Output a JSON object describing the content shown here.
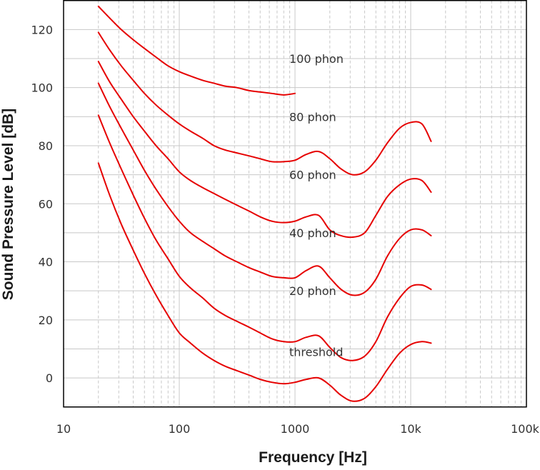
{
  "chart_data": {
    "type": "line",
    "title": "",
    "xlabel": "Frequency [Hz]",
    "ylabel": "Sound Pressure Level [dB]",
    "xscale": "log",
    "xlim": [
      10,
      100000
    ],
    "ylim": [
      -10,
      130
    ],
    "grid": true,
    "line_color": "#e60000",
    "x_ticks": [
      {
        "value": 10,
        "label": "10"
      },
      {
        "value": 100,
        "label": "100"
      },
      {
        "value": 1000,
        "label": "1000"
      },
      {
        "value": 10000,
        "label": "10k"
      },
      {
        "value": 100000,
        "label": "100k"
      }
    ],
    "y_ticks": [
      {
        "value": 0,
        "label": "0"
      },
      {
        "value": 20,
        "label": "20"
      },
      {
        "value": 40,
        "label": "40"
      },
      {
        "value": 60,
        "label": "60"
      },
      {
        "value": 80,
        "label": "80"
      },
      {
        "value": 100,
        "label": "100"
      },
      {
        "value": 120,
        "label": "120"
      }
    ],
    "series": [
      {
        "name": "threshold",
        "label": {
          "text": "threshold",
          "x": 1000,
          "y": 9
        },
        "points": [
          [
            20,
            74
          ],
          [
            25,
            63
          ],
          [
            31.5,
            53
          ],
          [
            40,
            44
          ],
          [
            50,
            36
          ],
          [
            63,
            28.5
          ],
          [
            80,
            21.5
          ],
          [
            100,
            15.5
          ],
          [
            125,
            12
          ],
          [
            160,
            8.5
          ],
          [
            200,
            6
          ],
          [
            250,
            4
          ],
          [
            315,
            2.5
          ],
          [
            400,
            1
          ],
          [
            500,
            -0.5
          ],
          [
            630,
            -1.5
          ],
          [
            800,
            -2
          ],
          [
            1000,
            -1.5
          ],
          [
            1250,
            -0.5
          ],
          [
            1600,
            0
          ],
          [
            2000,
            -2.5
          ],
          [
            2500,
            -6
          ],
          [
            3150,
            -8
          ],
          [
            4000,
            -7
          ],
          [
            5000,
            -3
          ],
          [
            6300,
            3
          ],
          [
            8000,
            8.5
          ],
          [
            10000,
            11.5
          ],
          [
            12500,
            12.5
          ],
          [
            15000,
            12
          ]
        ]
      },
      {
        "name": "20 phon",
        "label": {
          "text": "20 phon",
          "x": 1000,
          "y": 30
        },
        "points": [
          [
            20,
            90.5
          ],
          [
            25,
            81
          ],
          [
            31.5,
            72
          ],
          [
            40,
            63
          ],
          [
            50,
            55
          ],
          [
            63,
            47.5
          ],
          [
            80,
            41
          ],
          [
            100,
            35
          ],
          [
            125,
            31
          ],
          [
            160,
            27.5
          ],
          [
            200,
            24
          ],
          [
            250,
            21.5
          ],
          [
            315,
            19.5
          ],
          [
            400,
            17.5
          ],
          [
            500,
            15.5
          ],
          [
            630,
            13.5
          ],
          [
            800,
            12.5
          ],
          [
            1000,
            12.5
          ],
          [
            1250,
            14
          ],
          [
            1600,
            14.5
          ],
          [
            2000,
            10.5
          ],
          [
            2500,
            7
          ],
          [
            3150,
            6
          ],
          [
            4000,
            7.5
          ],
          [
            5000,
            12.5
          ],
          [
            6300,
            21
          ],
          [
            8000,
            27.5
          ],
          [
            10000,
            31.5
          ],
          [
            12500,
            32
          ],
          [
            15000,
            30.5
          ]
        ]
      },
      {
        "name": "40 phon",
        "label": {
          "text": "40 phon",
          "x": 1000,
          "y": 50
        },
        "points": [
          [
            20,
            101.5
          ],
          [
            25,
            93.5
          ],
          [
            31.5,
            86
          ],
          [
            40,
            78.5
          ],
          [
            50,
            71.5
          ],
          [
            63,
            65
          ],
          [
            80,
            59
          ],
          [
            100,
            54
          ],
          [
            125,
            50
          ],
          [
            160,
            47
          ],
          [
            200,
            44.5
          ],
          [
            250,
            42
          ],
          [
            315,
            40
          ],
          [
            400,
            38
          ],
          [
            500,
            36.5
          ],
          [
            630,
            35
          ],
          [
            800,
            34.5
          ],
          [
            1000,
            34.5
          ],
          [
            1250,
            37
          ],
          [
            1600,
            38.5
          ],
          [
            2000,
            34.5
          ],
          [
            2500,
            30.5
          ],
          [
            3150,
            28.5
          ],
          [
            4000,
            29.5
          ],
          [
            5000,
            34
          ],
          [
            6300,
            42
          ],
          [
            8000,
            48
          ],
          [
            10000,
            51
          ],
          [
            12500,
            51
          ],
          [
            15000,
            49
          ]
        ]
      },
      {
        "name": "60 phon",
        "label": {
          "text": "60 phon",
          "x": 1000,
          "y": 70
        },
        "points": [
          [
            20,
            109
          ],
          [
            25,
            102
          ],
          [
            31.5,
            96
          ],
          [
            40,
            90
          ],
          [
            50,
            85
          ],
          [
            63,
            80
          ],
          [
            80,
            75.5
          ],
          [
            100,
            71
          ],
          [
            125,
            68
          ],
          [
            160,
            65.5
          ],
          [
            200,
            63.5
          ],
          [
            250,
            61.5
          ],
          [
            315,
            59.5
          ],
          [
            400,
            57.5
          ],
          [
            500,
            55.5
          ],
          [
            630,
            54
          ],
          [
            800,
            53.5
          ],
          [
            1000,
            54
          ],
          [
            1250,
            55.5
          ],
          [
            1600,
            56
          ],
          [
            2000,
            51
          ],
          [
            2500,
            49
          ],
          [
            3150,
            48.5
          ],
          [
            4000,
            50
          ],
          [
            5000,
            56
          ],
          [
            6300,
            62.5
          ],
          [
            8000,
            66.5
          ],
          [
            10000,
            68.5
          ],
          [
            12500,
            68
          ],
          [
            15000,
            64
          ]
        ]
      },
      {
        "name": "80 phon",
        "label": {
          "text": "80 phon",
          "x": 1000,
          "y": 90
        },
        "points": [
          [
            20,
            119
          ],
          [
            25,
            113
          ],
          [
            31.5,
            107.5
          ],
          [
            40,
            102.5
          ],
          [
            50,
            98
          ],
          [
            63,
            94
          ],
          [
            80,
            90.5
          ],
          [
            100,
            87.5
          ],
          [
            125,
            85
          ],
          [
            160,
            82.5
          ],
          [
            200,
            80
          ],
          [
            250,
            78.5
          ],
          [
            315,
            77.5
          ],
          [
            400,
            76.5
          ],
          [
            500,
            75.5
          ],
          [
            630,
            74.5
          ],
          [
            800,
            74.5
          ],
          [
            1000,
            75
          ],
          [
            1250,
            77
          ],
          [
            1600,
            78
          ],
          [
            2000,
            75.5
          ],
          [
            2500,
            72
          ],
          [
            3150,
            70
          ],
          [
            4000,
            71
          ],
          [
            5000,
            75
          ],
          [
            6300,
            81
          ],
          [
            8000,
            86
          ],
          [
            10000,
            88
          ],
          [
            12500,
            87.5
          ],
          [
            15000,
            81.5
          ]
        ]
      },
      {
        "name": "100 phon",
        "label": {
          "text": "100 phon",
          "x": 1000,
          "y": 110
        },
        "points": [
          [
            20,
            128
          ],
          [
            25,
            124
          ],
          [
            31.5,
            120
          ],
          [
            40,
            116.5
          ],
          [
            50,
            113.5
          ],
          [
            63,
            110.5
          ],
          [
            80,
            107.5
          ],
          [
            100,
            105.5
          ],
          [
            125,
            104
          ],
          [
            160,
            102.5
          ],
          [
            200,
            101.5
          ],
          [
            250,
            100.5
          ],
          [
            315,
            100
          ],
          [
            400,
            99
          ],
          [
            500,
            98.5
          ],
          [
            630,
            98
          ],
          [
            800,
            97.5
          ],
          [
            1000,
            98
          ]
        ]
      }
    ]
  }
}
